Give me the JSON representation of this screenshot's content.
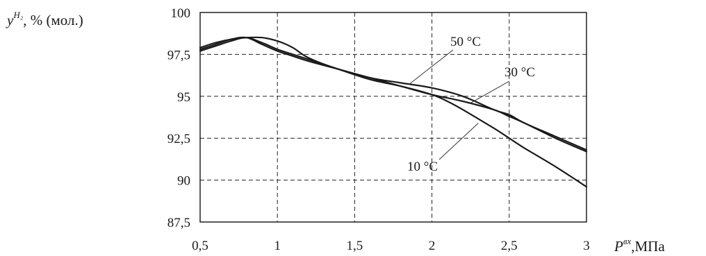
{
  "chart_data": {
    "type": "line",
    "title": "",
    "ylabel": {
      "symbol": "y",
      "superscript": "H₂",
      "suffix": ", % (мол.)"
    },
    "xlabel": {
      "symbol": "P",
      "superscript": "вх",
      "suffix": ",МПа"
    },
    "xlim": [
      0.5,
      3
    ],
    "ylim": [
      87.5,
      100
    ],
    "x_ticks": [
      0.5,
      1,
      1.5,
      2,
      2.5,
      3
    ],
    "x_tick_labels": [
      "0,5",
      "1",
      "1,5",
      "2",
      "2,5",
      "3"
    ],
    "y_ticks": [
      87.5,
      90,
      92.5,
      95,
      97.5,
      100
    ],
    "y_tick_labels": [
      "87,5",
      "90",
      "92,5",
      "95",
      "97,5",
      "100"
    ],
    "grid": true,
    "series": [
      {
        "name": "50 °C",
        "x": [
          0.5,
          0.6,
          0.7,
          0.8,
          0.9,
          1.0,
          1.1,
          1.2,
          1.4,
          1.6,
          1.8,
          2.0,
          2.2,
          2.4,
          2.5,
          2.6,
          2.8,
          3.0
        ],
        "y": [
          97.9,
          98.2,
          98.4,
          98.5,
          98.5,
          98.3,
          97.9,
          97.3,
          96.6,
          96.1,
          95.8,
          95.5,
          95.0,
          94.2,
          93.9,
          93.4,
          92.6,
          91.8
        ]
      },
      {
        "name": "30 °C",
        "x": [
          0.5,
          0.6,
          0.7,
          0.8,
          0.9,
          1.0,
          1.1,
          1.2,
          1.4,
          1.6,
          1.8,
          2.0,
          2.2,
          2.4,
          2.5,
          2.6,
          2.8,
          3.0
        ],
        "y": [
          97.8,
          98.1,
          98.4,
          98.5,
          98.1,
          97.7,
          97.4,
          97.1,
          96.6,
          96.1,
          95.6,
          95.1,
          94.7,
          94.2,
          93.8,
          93.4,
          92.5,
          91.7
        ]
      },
      {
        "name": "10 °C",
        "x": [
          0.5,
          0.6,
          0.7,
          0.8,
          0.9,
          1.0,
          1.1,
          1.2,
          1.4,
          1.6,
          1.8,
          2.0,
          2.1,
          2.2,
          2.4,
          2.5,
          2.6,
          2.8,
          3.0
        ],
        "y": [
          97.7,
          98.0,
          98.3,
          98.5,
          98.2,
          97.8,
          97.5,
          97.2,
          96.6,
          96.0,
          95.6,
          95.1,
          94.7,
          94.2,
          93.1,
          92.5,
          91.9,
          90.8,
          89.6
        ]
      }
    ],
    "annotations": [
      {
        "text": "50 °C",
        "series": "50 °C",
        "anchor_x": 1.85,
        "anchor_y": 95.7
      },
      {
        "text": "30 °C",
        "series": "30 °C",
        "anchor_x": 2.25,
        "anchor_y": 94.6
      },
      {
        "text": "10 °C",
        "series": "10 °C",
        "anchor_x": 2.3,
        "anchor_y": 93.4
      }
    ]
  }
}
